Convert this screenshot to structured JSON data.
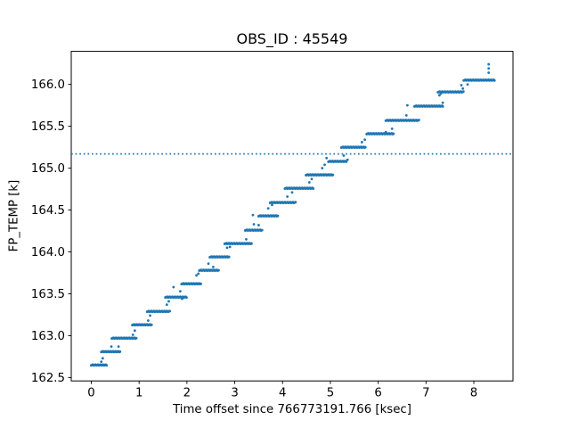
{
  "chart_data": {
    "type": "scatter",
    "title": "OBS_ID : 45549",
    "xlabel": "Time offset since 766773191.766 [ksec]",
    "ylabel": "FP_TEMP [k]",
    "marker_color": "#1f77b4",
    "background_color": "#ffffff",
    "axes_color": "#000000",
    "grid": false,
    "legend": null,
    "xlim": [
      -0.419,
      8.819
    ],
    "ylim": [
      162.46,
      166.394
    ],
    "xticks": [
      {
        "v": 0,
        "label": "0"
      },
      {
        "v": 1,
        "label": "1"
      },
      {
        "v": 2,
        "label": "2"
      },
      {
        "v": 3,
        "label": "3"
      },
      {
        "v": 4,
        "label": "4"
      },
      {
        "v": 5,
        "label": "5"
      },
      {
        "v": 6,
        "label": "6"
      },
      {
        "v": 7,
        "label": "7"
      },
      {
        "v": 8,
        "label": "8"
      }
    ],
    "yticks": [
      {
        "v": 162.5,
        "label": "162.5"
      },
      {
        "v": 163.0,
        "label": "163.0"
      },
      {
        "v": 163.5,
        "label": "163.5"
      },
      {
        "v": 164.0,
        "label": "164.0"
      },
      {
        "v": 164.5,
        "label": "164.5"
      },
      {
        "v": 165.0,
        "label": "165.0"
      },
      {
        "v": 165.5,
        "label": "165.5"
      },
      {
        "v": 166.0,
        "label": "166.0"
      }
    ],
    "hline": {
      "y": 165.17,
      "style": "dotted",
      "color": "#1f77b4"
    },
    "steps_note": "dense runs of dots; each entry is [temperature_K, x_start_ksec, x_end_ksec]",
    "steps": [
      [
        162.65,
        0.0,
        0.32
      ],
      [
        162.81,
        0.21,
        0.6
      ],
      [
        162.97,
        0.43,
        0.94
      ],
      [
        163.13,
        0.86,
        1.26
      ],
      [
        163.29,
        1.17,
        1.64
      ],
      [
        163.46,
        1.55,
        1.99
      ],
      [
        163.62,
        1.89,
        2.29
      ],
      [
        163.78,
        2.26,
        2.66
      ],
      [
        163.94,
        2.48,
        2.88
      ],
      [
        164.1,
        2.79,
        3.35
      ],
      [
        164.26,
        3.22,
        3.57
      ],
      [
        164.43,
        3.5,
        3.9
      ],
      [
        164.59,
        3.74,
        4.27
      ],
      [
        164.76,
        4.05,
        4.64
      ],
      [
        164.92,
        4.49,
        5.05
      ],
      [
        165.08,
        4.96,
        5.33
      ],
      [
        165.25,
        5.23,
        5.73
      ],
      [
        165.41,
        5.76,
        6.32
      ],
      [
        165.57,
        6.16,
        6.85
      ],
      [
        165.74,
        6.76,
        7.35
      ],
      [
        165.91,
        7.25,
        7.78
      ],
      [
        166.05,
        7.79,
        8.43
      ]
    ],
    "extra_points": [
      [
        0.21,
        162.69
      ],
      [
        0.24,
        162.73
      ],
      [
        0.42,
        162.87
      ],
      [
        0.57,
        162.87
      ],
      [
        0.87,
        163.01
      ],
      [
        0.91,
        163.06
      ],
      [
        1.19,
        163.18
      ],
      [
        1.23,
        163.24
      ],
      [
        1.58,
        163.37
      ],
      [
        1.62,
        163.41
      ],
      [
        1.72,
        163.58
      ],
      [
        1.86,
        163.53
      ],
      [
        1.9,
        163.44
      ],
      [
        2.2,
        163.72
      ],
      [
        2.24,
        163.74
      ],
      [
        2.45,
        163.86
      ],
      [
        2.55,
        163.82
      ],
      [
        2.84,
        164.05
      ],
      [
        2.9,
        164.06
      ],
      [
        3.24,
        164.15
      ],
      [
        3.38,
        164.44
      ],
      [
        3.4,
        164.33
      ],
      [
        3.5,
        164.32
      ],
      [
        3.7,
        164.52
      ],
      [
        3.78,
        164.56
      ],
      [
        4.1,
        164.66
      ],
      [
        4.2,
        164.71
      ],
      [
        4.56,
        164.83
      ],
      [
        4.61,
        164.87
      ],
      [
        4.83,
        165.0
      ],
      [
        4.88,
        165.04
      ],
      [
        4.92,
        165.12
      ],
      [
        5.36,
        165.1
      ],
      [
        5.28,
        165.15
      ],
      [
        5.66,
        165.31
      ],
      [
        5.72,
        165.34
      ],
      [
        6.16,
        165.43
      ],
      [
        6.29,
        165.47
      ],
      [
        6.59,
        165.63
      ],
      [
        6.61,
        165.75
      ],
      [
        7.28,
        165.87
      ],
      [
        7.31,
        165.89
      ],
      [
        7.35,
        165.78
      ],
      [
        7.74,
        165.99
      ],
      [
        7.77,
        165.95
      ],
      [
        7.87,
        166.0
      ],
      [
        8.31,
        166.14
      ],
      [
        8.31,
        166.19
      ],
      [
        8.31,
        166.24
      ]
    ]
  }
}
